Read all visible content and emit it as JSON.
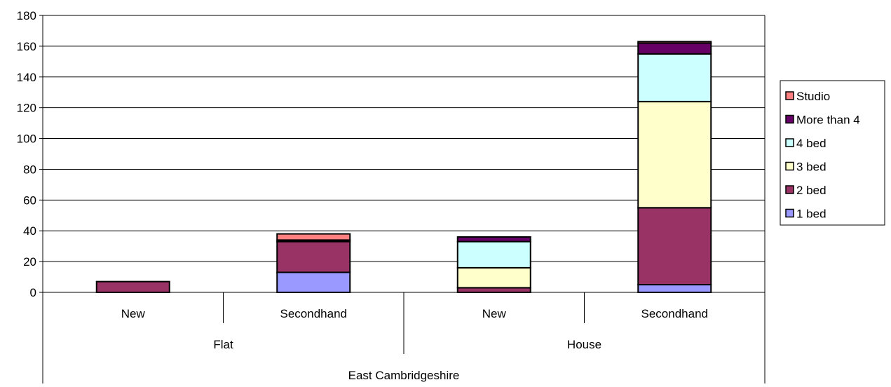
{
  "chart_data": {
    "type": "bar",
    "stacked": true,
    "categories": [
      "New",
      "Secondhand",
      "New",
      "Secondhand"
    ],
    "category_groups": [
      {
        "label": "Flat",
        "span": 2
      },
      {
        "label": "House",
        "span": 2
      }
    ],
    "super_group": "East Cambridgeshire",
    "ylim": [
      0,
      180
    ],
    "yticks": [
      "0",
      "20",
      "40",
      "60",
      "80",
      "100",
      "120",
      "140",
      "160",
      "180"
    ],
    "grid": true,
    "legend_position": "right",
    "series": [
      {
        "name": "1 bed",
        "color": "#9999ff",
        "values": [
          0,
          13,
          0,
          5
        ]
      },
      {
        "name": "2 bed",
        "color": "#993366",
        "values": [
          7,
          20,
          3,
          50
        ]
      },
      {
        "name": "3 bed",
        "color": "#ffffcc",
        "values": [
          0,
          0,
          13,
          69
        ]
      },
      {
        "name": "4 bed",
        "color": "#ccffff",
        "values": [
          0,
          0,
          17,
          31
        ]
      },
      {
        "name": "More than 4",
        "color": "#660066",
        "values": [
          0,
          1,
          3,
          7
        ]
      },
      {
        "name": "Studio",
        "color": "#ff8080",
        "values": [
          0,
          4,
          0,
          1
        ]
      }
    ]
  }
}
